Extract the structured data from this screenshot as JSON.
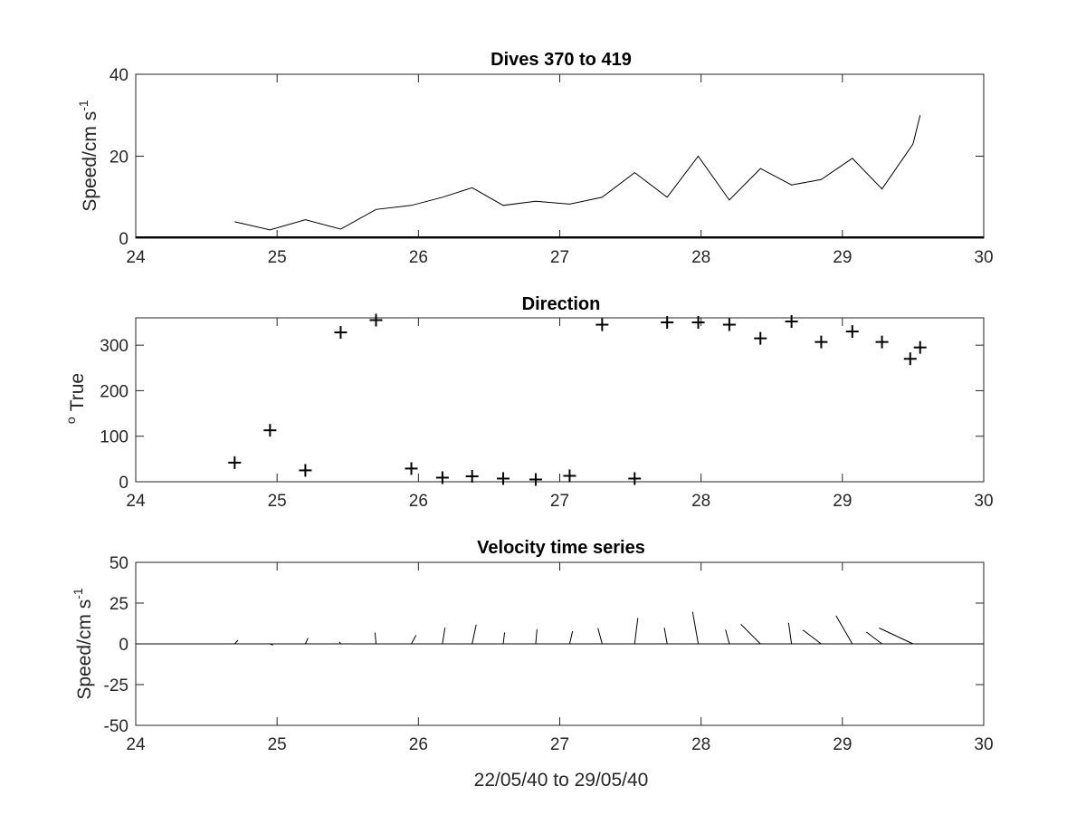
{
  "figure": {
    "xlabel": "22/05/40 to 29/05/40"
  },
  "chart_data": [
    {
      "type": "line",
      "title": "Dives 370 to 419",
      "ylabel_main": "Speed/cm s",
      "ylabel_sup": "-1",
      "xlim": [
        24,
        30
      ],
      "ylim": [
        0,
        40
      ],
      "xticks": [
        24,
        25,
        26,
        27,
        28,
        29,
        30
      ],
      "yticks": [
        0,
        20,
        40
      ],
      "x": [
        24.7,
        24.95,
        25.2,
        25.45,
        25.7,
        25.95,
        26.17,
        26.38,
        26.6,
        26.83,
        27.07,
        27.3,
        27.53,
        27.76,
        27.98,
        28.2,
        28.42,
        28.64,
        28.85,
        29.07,
        29.28,
        29.5,
        29.55
      ],
      "y": [
        4,
        2,
        4.5,
        2.2,
        7,
        8,
        10,
        12.3,
        8,
        9,
        8.3,
        10,
        16,
        10,
        20,
        9.3,
        17,
        13,
        14.3,
        19.5,
        12,
        23,
        30
      ]
    },
    {
      "type": "scatter",
      "title": "Direction",
      "ylabel_main": "True",
      "ylabel_sup": "o",
      "xlim": [
        24,
        30
      ],
      "ylim": [
        0,
        360
      ],
      "xticks": [
        24,
        25,
        26,
        27,
        28,
        29,
        30
      ],
      "yticks": [
        0,
        100,
        200,
        300
      ],
      "marker": "+",
      "x": [
        24.7,
        24.95,
        25.2,
        25.45,
        25.7,
        25.95,
        26.17,
        26.38,
        26.6,
        26.83,
        27.07,
        27.3,
        27.53,
        27.76,
        27.98,
        28.2,
        28.42,
        28.64,
        28.85,
        29.07,
        29.28,
        29.48,
        29.55
      ],
      "y": [
        42,
        113,
        25,
        328,
        355,
        29,
        9,
        12,
        7,
        5,
        13,
        345,
        7,
        350,
        350,
        345,
        315,
        352,
        307,
        330,
        307,
        270,
        295
      ]
    },
    {
      "type": "stick",
      "title": "Velocity time series",
      "ylabel_main": "Speed/cm s",
      "ylabel_sup": "-1",
      "xlim": [
        24,
        30
      ],
      "ylim": [
        -50,
        50
      ],
      "xticks": [
        24,
        25,
        26,
        27,
        28,
        29,
        30
      ],
      "yticks": [
        -50,
        -25,
        0,
        25,
        50
      ],
      "x": [
        24.7,
        24.95,
        25.2,
        25.45,
        25.7,
        25.95,
        26.17,
        26.38,
        26.6,
        26.83,
        27.07,
        27.3,
        27.53,
        27.76,
        27.98,
        28.2,
        28.42,
        28.64,
        28.85,
        29.07,
        29.28,
        29.5
      ],
      "speed": [
        3,
        2,
        4,
        1.5,
        7,
        6,
        10,
        12,
        7,
        9,
        8,
        10,
        16,
        10,
        20,
        9,
        17,
        13,
        14,
        20,
        12,
        23
      ],
      "direction": [
        42,
        113,
        25,
        328,
        355,
        29,
        9,
        12,
        7,
        5,
        13,
        345,
        7,
        350,
        350,
        345,
        315,
        352,
        307,
        330,
        307,
        295
      ]
    }
  ]
}
